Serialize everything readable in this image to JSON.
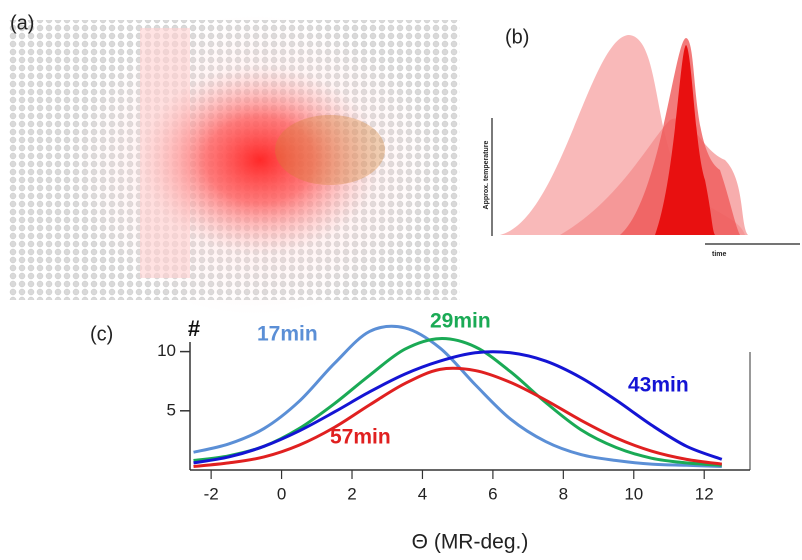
{
  "panels": {
    "a": {
      "label": "(a)"
    },
    "b": {
      "label": "(b)",
      "y_label": "Approx. temperature",
      "x_label": "time"
    },
    "c": {
      "label": "(c)"
    }
  },
  "chart_data": {
    "type": "line",
    "x_label": "Θ (MR-deg.)",
    "y_label": "#",
    "x": [
      -2.5,
      -1.5,
      -0.5,
      0.5,
      1.5,
      2.5,
      3.5,
      4.5,
      5.5,
      6.5,
      7.5,
      8.5,
      9.5,
      10.5,
      11.5,
      12.5
    ],
    "series": [
      {
        "name": "17min",
        "color": "#5b8fd6",
        "values": [
          1.5,
          2.2,
          3.5,
          5.8,
          9.0,
          11.7,
          12.0,
          10.3,
          7.2,
          4.3,
          2.4,
          1.3,
          0.8,
          0.5,
          0.4,
          0.3
        ]
      },
      {
        "name": "29min",
        "color": "#1aaa55",
        "values": [
          0.8,
          1.2,
          2.0,
          3.5,
          5.6,
          8.0,
          10.2,
          11.1,
          10.4,
          8.3,
          5.7,
          3.4,
          1.9,
          1.0,
          0.6,
          0.4
        ]
      },
      {
        "name": "43min",
        "color": "#1414d4",
        "values": [
          0.6,
          1.1,
          2.0,
          3.3,
          4.9,
          6.6,
          8.1,
          9.2,
          9.9,
          9.9,
          9.2,
          7.8,
          5.9,
          3.8,
          2.0,
          0.9
        ]
      },
      {
        "name": "57min",
        "color": "#e02020",
        "values": [
          0.3,
          0.6,
          1.1,
          2.1,
          3.6,
          5.5,
          7.3,
          8.5,
          8.4,
          7.4,
          5.9,
          4.2,
          2.7,
          1.6,
          0.9,
          0.5
        ]
      }
    ],
    "xlim": [
      -2.6,
      13.3
    ],
    "ylim": [
      0,
      12.5
    ],
    "xticks": [
      -2,
      0,
      2,
      4,
      6,
      8,
      10,
      12
    ],
    "yticks": [
      5,
      10
    ],
    "grid": false
  }
}
